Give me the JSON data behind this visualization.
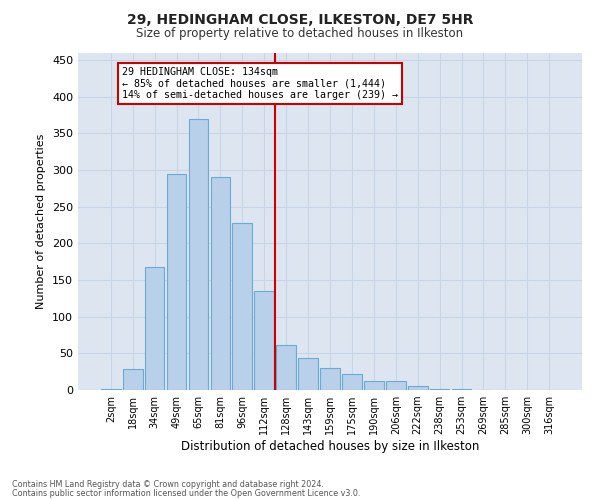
{
  "title_line1": "29, HEDINGHAM CLOSE, ILKESTON, DE7 5HR",
  "title_line2": "Size of property relative to detached houses in Ilkeston",
  "xlabel": "Distribution of detached houses by size in Ilkeston",
  "ylabel": "Number of detached properties",
  "footer_line1": "Contains HM Land Registry data © Crown copyright and database right 2024.",
  "footer_line2": "Contains public sector information licensed under the Open Government Licence v3.0.",
  "bar_labels": [
    "2sqm",
    "18sqm",
    "34sqm",
    "49sqm",
    "65sqm",
    "81sqm",
    "96sqm",
    "112sqm",
    "128sqm",
    "143sqm",
    "159sqm",
    "175sqm",
    "190sqm",
    "206sqm",
    "222sqm",
    "238sqm",
    "253sqm",
    "269sqm",
    "285sqm",
    "300sqm",
    "316sqm"
  ],
  "bar_values": [
    2,
    28,
    168,
    295,
    370,
    290,
    228,
    135,
    62,
    43,
    30,
    22,
    12,
    12,
    5,
    2,
    1,
    0,
    0,
    0,
    0
  ],
  "bar_color": "#b8d0ea",
  "bar_edge_color": "#6aaad4",
  "vline_x": 7.5,
  "annotation_title": "29 HEDINGHAM CLOSE: 134sqm",
  "annotation_line2": "← 85% of detached houses are smaller (1,444)",
  "annotation_line3": "14% of semi-detached houses are larger (239) →",
  "annotation_box_color": "#ffffff",
  "annotation_border_color": "#cc0000",
  "vline_color": "#cc0000",
  "grid_color": "#c8d4e8",
  "background_color": "#dde6f0",
  "ylim": [
    0,
    460
  ],
  "yticks": [
    0,
    50,
    100,
    150,
    200,
    250,
    300,
    350,
    400,
    450
  ]
}
